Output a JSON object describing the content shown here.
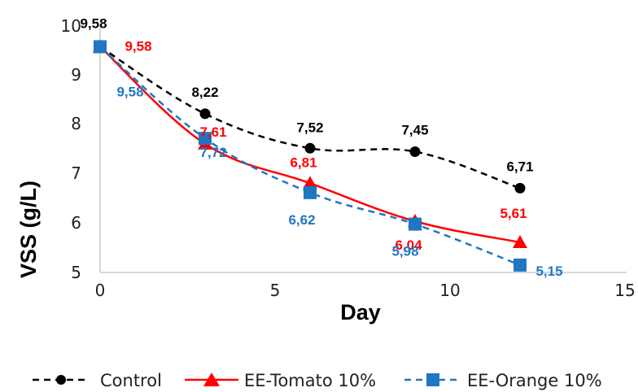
{
  "chart_data": {
    "type": "line",
    "xlabel": "Day",
    "ylabel": "VSS (g/L)",
    "xlim": [
      0,
      15
    ],
    "ylim": [
      5,
      10
    ],
    "x_ticks": [
      "0",
      "5",
      "10",
      "15"
    ],
    "y_ticks": [
      "5",
      "6",
      "7",
      "8",
      "9",
      "10"
    ],
    "grid": false,
    "legend_position": "bottom",
    "series": [
      {
        "name": "Control",
        "color": "#000000",
        "style": "dashed",
        "marker": "circle",
        "x": [
          0,
          3,
          6,
          9,
          12
        ],
        "values": [
          9.58,
          8.22,
          7.52,
          7.45,
          6.71
        ],
        "labels": [
          "9,58",
          "8,22",
          "7,52",
          "7,45",
          "6,71"
        ]
      },
      {
        "name": "EE-Tomato 10%",
        "color": "#ff0000",
        "style": "solid",
        "marker": "triangle",
        "x": [
          0,
          3,
          6,
          9,
          12
        ],
        "values": [
          9.58,
          7.61,
          6.81,
          6.04,
          5.61
        ],
        "labels": [
          "9,58",
          "7,61",
          "6,81",
          "6,04",
          "5,61"
        ]
      },
      {
        "name": "EE-Orange 10%",
        "color": "#1f77c4",
        "style": "dashed",
        "marker": "square",
        "x": [
          0,
          3,
          6,
          9,
          12
        ],
        "values": [
          9.58,
          7.72,
          6.62,
          5.98,
          5.15
        ],
        "labels": [
          "9,58",
          "7,72",
          "6,62",
          "5,98",
          "5,15"
        ]
      }
    ]
  }
}
